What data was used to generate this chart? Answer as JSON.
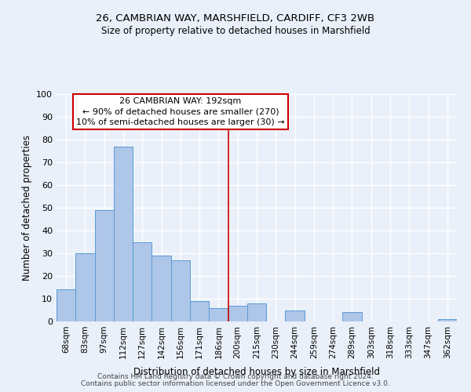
{
  "title1": "26, CAMBRIAN WAY, MARSHFIELD, CARDIFF, CF3 2WB",
  "title2": "Size of property relative to detached houses in Marshfield",
  "xlabel": "Distribution of detached houses by size in Marshfield",
  "ylabel": "Number of detached properties",
  "footer1": "Contains HM Land Registry data © Crown copyright and database right 2024.",
  "footer2": "Contains public sector information licensed under the Open Government Licence v3.0.",
  "bin_labels": [
    "68sqm",
    "83sqm",
    "97sqm",
    "112sqm",
    "127sqm",
    "142sqm",
    "156sqm",
    "171sqm",
    "186sqm",
    "200sqm",
    "215sqm",
    "230sqm",
    "244sqm",
    "259sqm",
    "274sqm",
    "289sqm",
    "303sqm",
    "318sqm",
    "333sqm",
    "347sqm",
    "362sqm"
  ],
  "bar_heights": [
    14,
    30,
    49,
    77,
    35,
    29,
    27,
    9,
    6,
    7,
    8,
    0,
    5,
    0,
    0,
    4,
    0,
    0,
    0,
    0,
    1
  ],
  "bar_color": "#aec6e8",
  "bar_edge_color": "#5b9bd5",
  "background_color": "#eaf0f9",
  "grid_color": "#ffffff",
  "annotation_box_text": "26 CAMBRIAN WAY: 192sqm\n← 90% of detached houses are smaller (270)\n10% of semi-detached houses are larger (30) →",
  "annotation_box_color": "#ffffff",
  "annotation_box_edge_color": "#cc0000",
  "vline_x_index": 8.5,
  "vline_color": "#cc0000",
  "ylim": [
    0,
    100
  ],
  "yticks": [
    0,
    10,
    20,
    30,
    40,
    50,
    60,
    70,
    80,
    90,
    100
  ]
}
